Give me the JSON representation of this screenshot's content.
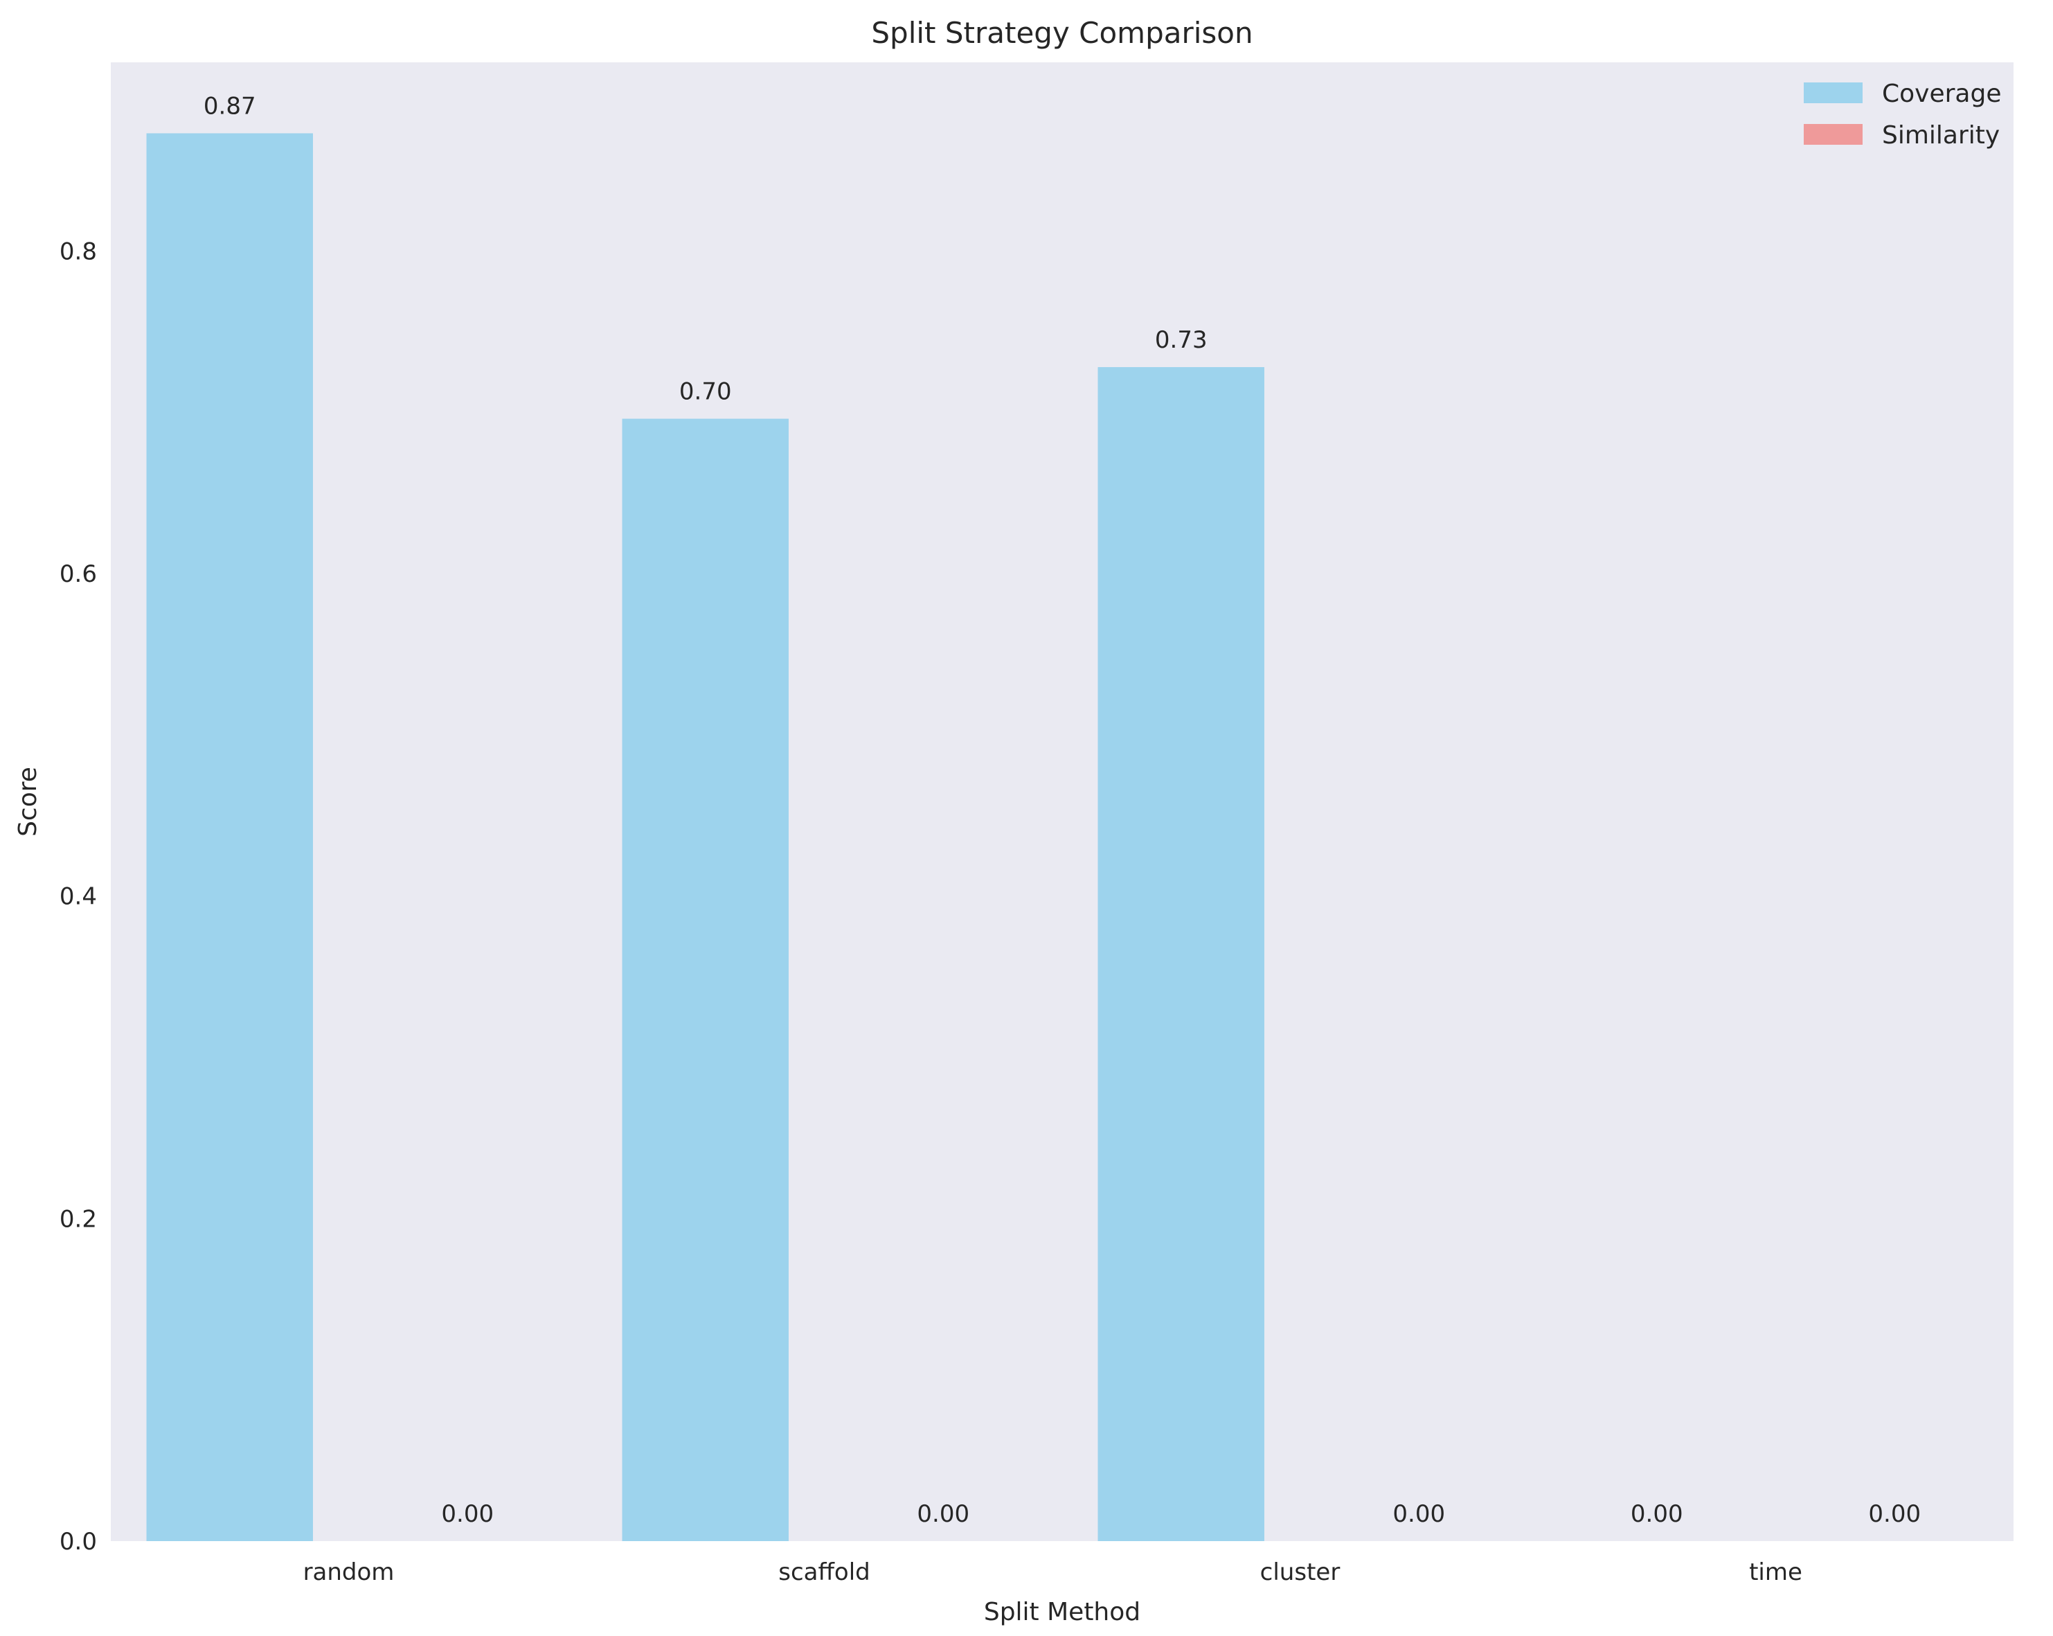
{
  "chart_data": {
    "type": "bar",
    "title": "Split Strategy Comparison",
    "xlabel": "Split Method",
    "ylabel": "Score",
    "categories": [
      "random",
      "scaffold",
      "cluster",
      "time"
    ],
    "series": [
      {
        "name": "Coverage",
        "values": [
          0.873,
          0.696,
          0.728,
          0.0
        ],
        "labels": [
          "0.87",
          "0.70",
          "0.73",
          "0.00"
        ]
      },
      {
        "name": "Similarity",
        "values": [
          0.0,
          0.0,
          0.0,
          0.0
        ],
        "labels": [
          "0.00",
          "0.00",
          "0.00",
          "0.00"
        ]
      }
    ],
    "ylim": [
      0,
      0.917
    ],
    "yticks": [
      0.0,
      0.2,
      0.4,
      0.6,
      0.8
    ],
    "ytick_labels": [
      "0.0",
      "0.2",
      "0.4",
      "0.6",
      "0.8"
    ],
    "grid": false,
    "legend_position": "top-right",
    "colors": {
      "Coverage": "#9dd3ed",
      "Similarity": "#ef9a9a",
      "plot_background": "#eaeaf2"
    }
  }
}
